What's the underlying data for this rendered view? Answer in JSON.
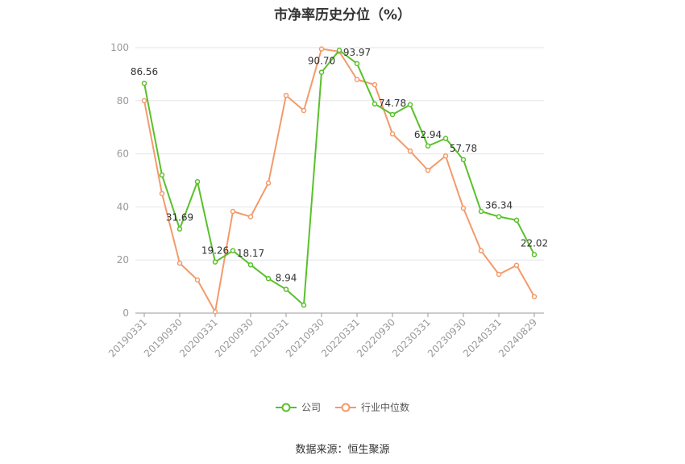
{
  "chart_data": {
    "type": "line",
    "title": "市净率历史分位（%）",
    "xlabel": "",
    "ylabel": "",
    "ylim": [
      0,
      100
    ],
    "yticks": [
      0,
      20,
      40,
      60,
      80,
      100
    ],
    "x": [
      "20190331",
      "20190630",
      "20190930",
      "20191231",
      "20200331",
      "20200630",
      "20200930",
      "20201231",
      "20210331",
      "20210630",
      "20210930",
      "20211231",
      "20220331",
      "20220630",
      "20220930",
      "20221231",
      "20230331",
      "20230630",
      "20230930",
      "20231231",
      "20240331",
      "20240630",
      "20240829"
    ],
    "x_tick_labels": [
      "20190331",
      "20190930",
      "20200331",
      "20200930",
      "20210331",
      "20210930",
      "20220331",
      "20220930",
      "20230331",
      "20230930",
      "20240331",
      "20240829"
    ],
    "grid": true,
    "legend_position": "bottom",
    "series": [
      {
        "name": "公司",
        "color": "#5ac02c",
        "values": [
          86.56,
          52.0,
          31.69,
          49.5,
          19.26,
          23.5,
          18.17,
          13.0,
          8.94,
          3.0,
          90.7,
          99.0,
          93.97,
          78.8,
          74.78,
          78.5,
          62.94,
          65.8,
          57.78,
          38.3,
          36.34,
          35.0,
          22.02
        ],
        "labels": {
          "0": "86.56",
          "2": "31.69",
          "4": "19.26",
          "6": "18.17",
          "8": "8.94",
          "10": "90.70",
          "12": "93.97",
          "14": "74.78",
          "16": "62.94",
          "18": "57.78",
          "20": "36.34",
          "22": "22.02"
        }
      },
      {
        "name": "行业中位数",
        "color": "#f39a6b",
        "values": [
          80.0,
          45.0,
          18.8,
          12.5,
          0.5,
          38.3,
          36.3,
          49.0,
          82.0,
          76.3,
          99.5,
          98.5,
          88.0,
          86.0,
          67.5,
          61.0,
          53.8,
          59.2,
          39.5,
          23.5,
          14.6,
          18.0,
          6.2
        ]
      }
    ]
  },
  "source_text": "数据来源：恒生聚源"
}
